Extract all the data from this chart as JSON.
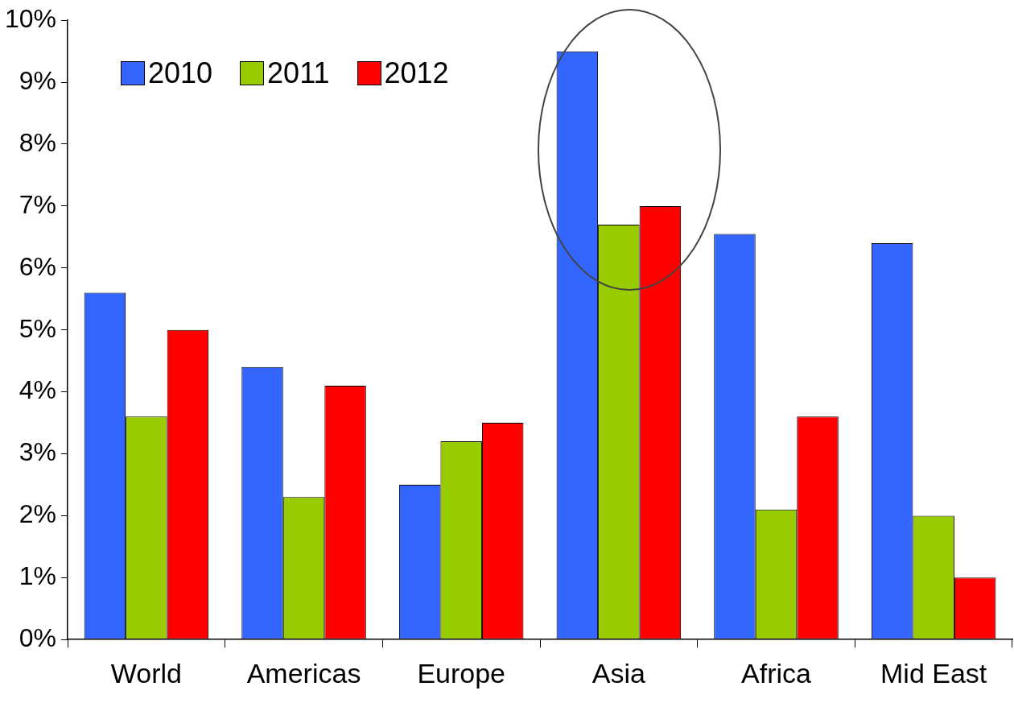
{
  "chart_data": {
    "type": "bar",
    "categories": [
      "World",
      "Americas",
      "Europe",
      "Asia",
      "Africa",
      "Mid East"
    ],
    "series": [
      {
        "name": "2010",
        "color": "#3366ff",
        "values": [
          5.6,
          4.4,
          2.5,
          9.5,
          6.55,
          6.4
        ]
      },
      {
        "name": "2011",
        "color": "#99cc00",
        "values": [
          3.6,
          2.3,
          3.2,
          6.7,
          2.1,
          2.0
        ]
      },
      {
        "name": "2012",
        "color": "#ff0000",
        "values": [
          5.0,
          4.1,
          3.5,
          7.0,
          3.6,
          1.0
        ]
      }
    ],
    "ylim": [
      0,
      10
    ],
    "yticks": [
      {
        "value": 0,
        "label": "0%"
      },
      {
        "value": 1,
        "label": "1%"
      },
      {
        "value": 2,
        "label": "2%"
      },
      {
        "value": 3,
        "label": "3%"
      },
      {
        "value": 4,
        "label": "4%"
      },
      {
        "value": 5,
        "label": "5%"
      },
      {
        "value": 6,
        "label": "6%"
      },
      {
        "value": 7,
        "label": "7%"
      },
      {
        "value": 8,
        "label": "8%"
      },
      {
        "value": 9,
        "label": "9%"
      },
      {
        "value": 10,
        "label": "10%"
      }
    ],
    "grid": false,
    "legend": "top left"
  }
}
